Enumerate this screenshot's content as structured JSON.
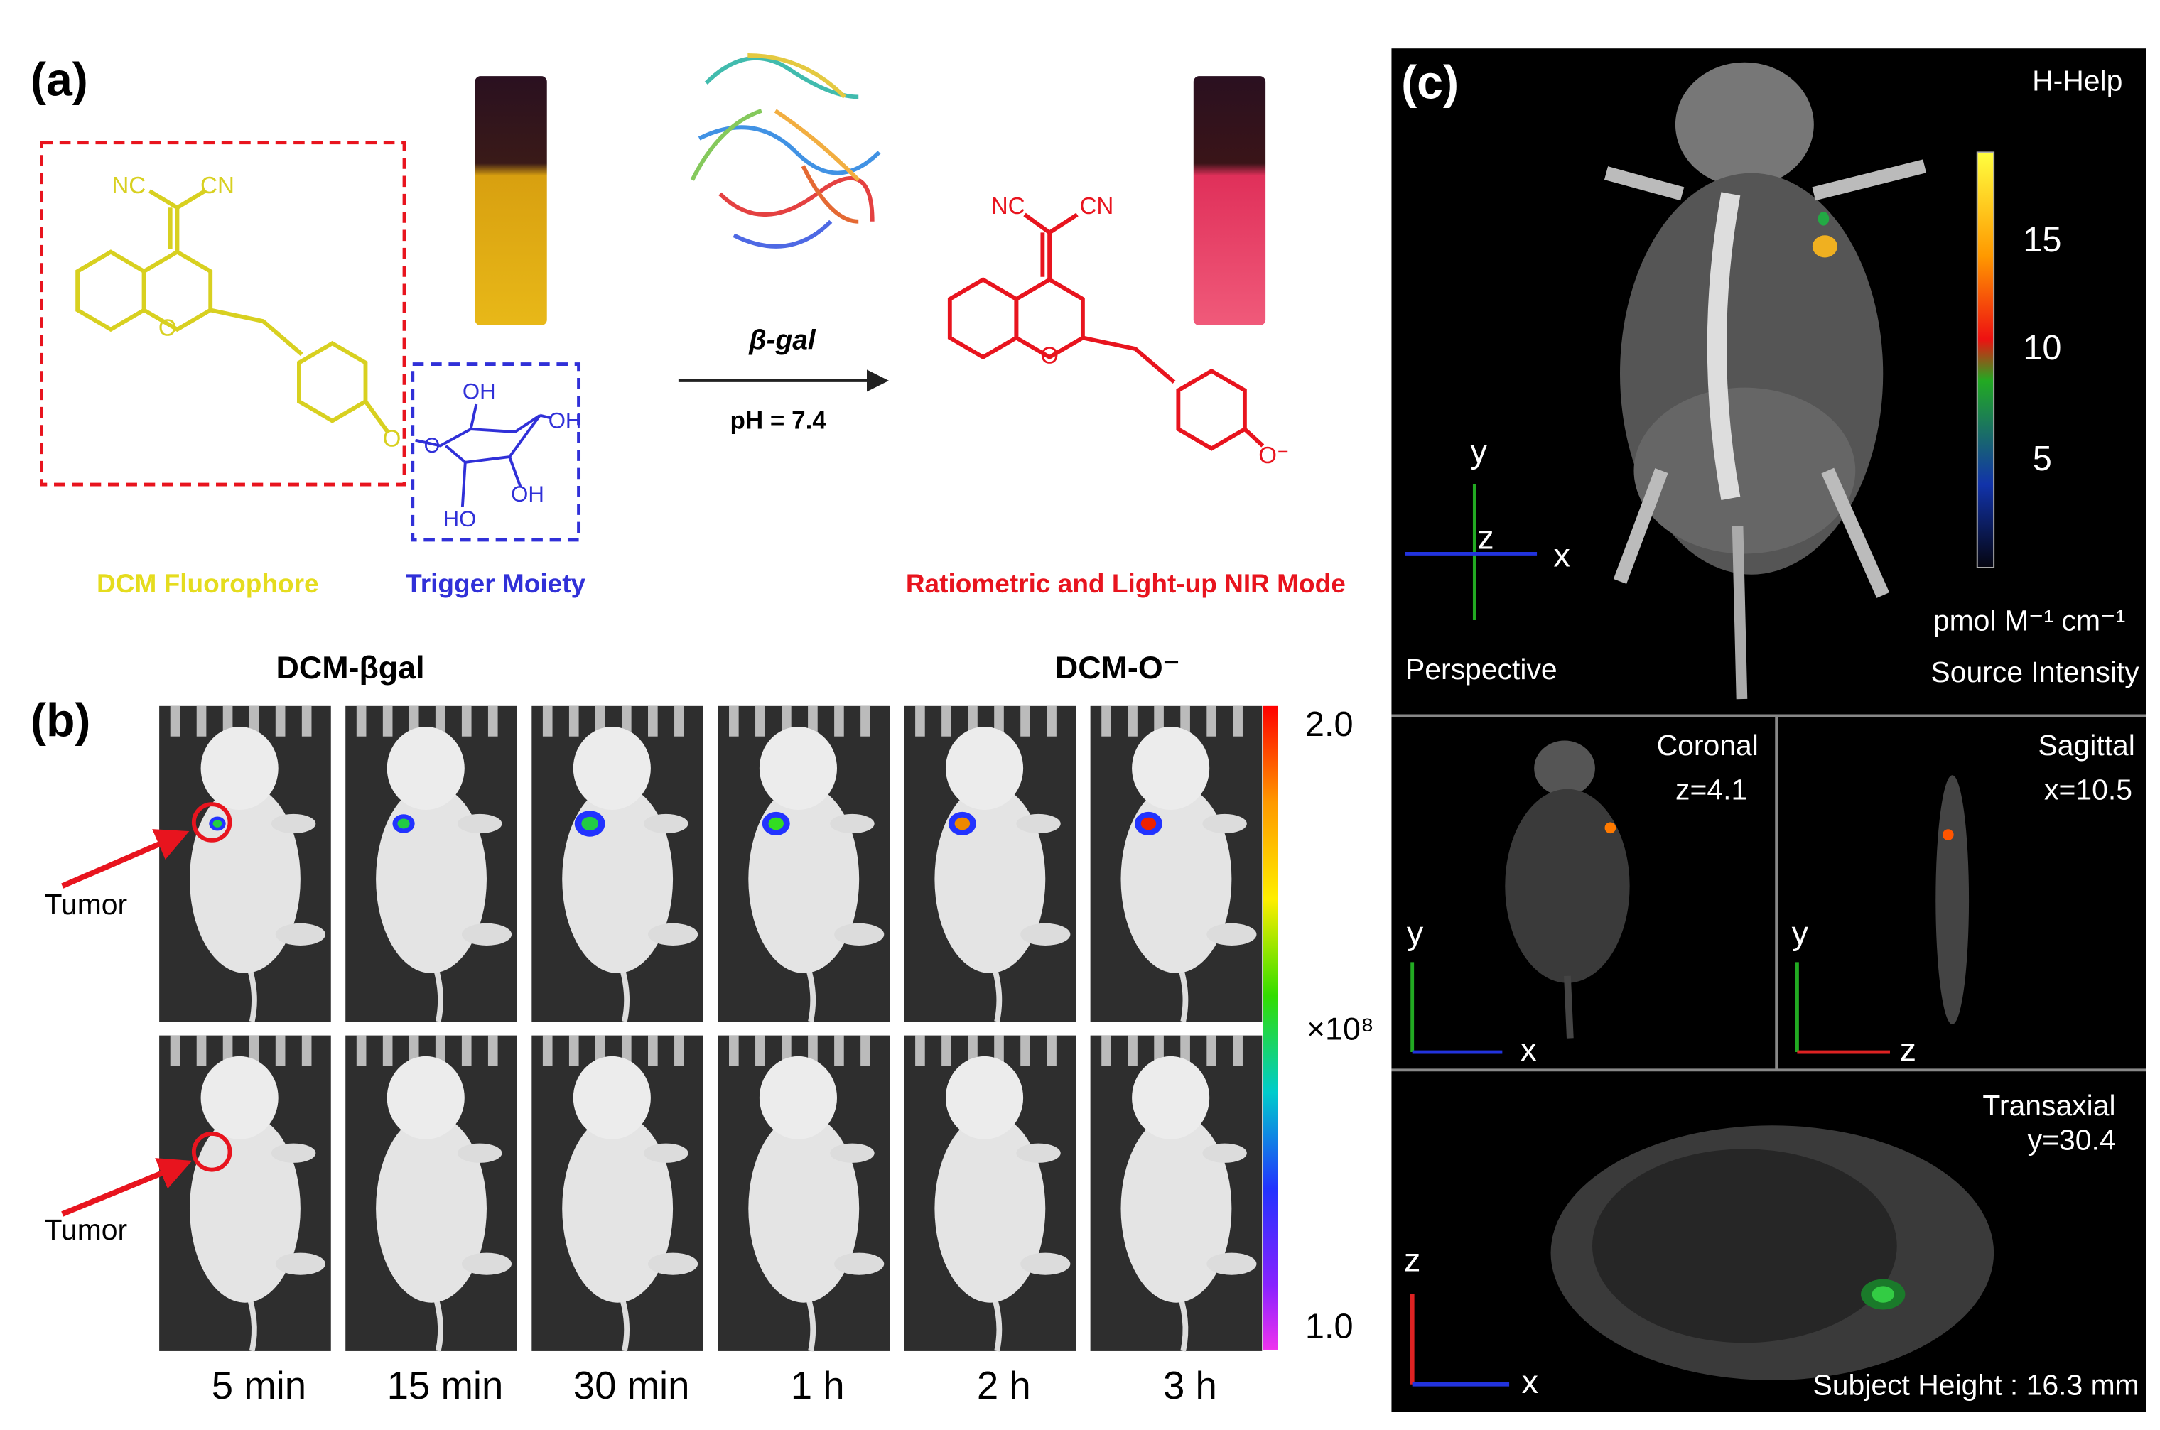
{
  "panel_a": {
    "label": "(a)",
    "fluorophore": {
      "nc": "NC",
      "cn": "CN",
      "ring_o": "O",
      "linker_o": "O",
      "caption": "DCM Fluorophore"
    },
    "trigger": {
      "ring_o": "O",
      "oh_top": "OH",
      "oh_right": "OH",
      "oh_bottom": "OH",
      "ho_bottom": "HO",
      "caption": "Trigger Moiety"
    },
    "enzyme": "β-gal",
    "condition": "pH = 7.4",
    "product": {
      "nc": "NC",
      "cn": "CN",
      "ring_o": "O",
      "phenolate": "O⁻",
      "caption": "Ratiometric and Light-up NIR Mode"
    }
  },
  "panel_b": {
    "label": "(b)",
    "probe": "DCM-βgal",
    "product": "DCM-O⁻",
    "tumor_labels": [
      "Tumor",
      "Tumor"
    ],
    "times": [
      "5 min",
      "15 min",
      "30 min",
      "1 h",
      "2 h",
      "3 h"
    ],
    "colorbar": {
      "max": "2.0",
      "unit": "×10⁸",
      "min": "1.0"
    }
  },
  "panel_c": {
    "label": "(c)",
    "help": "H-Help",
    "colorbar": {
      "ticks": [
        "15",
        "10",
        "5"
      ],
      "unit": "pmol M⁻¹ cm⁻¹",
      "title": "Source Intensity"
    },
    "perspective": {
      "name": "Perspective",
      "axes": [
        "y",
        "z",
        "x"
      ]
    },
    "coronal": {
      "name": "Coronal",
      "slice": "z=4.1",
      "axes": [
        "y",
        "x"
      ]
    },
    "sagittal": {
      "name": "Sagittal",
      "slice": "x=10.5",
      "axes": [
        "y",
        "z"
      ]
    },
    "transaxial": {
      "name": "Transaxial",
      "slice": "y=30.4",
      "axes": [
        "z",
        "x"
      ]
    },
    "subject_height": "Subject Height : 16.3 mm"
  }
}
